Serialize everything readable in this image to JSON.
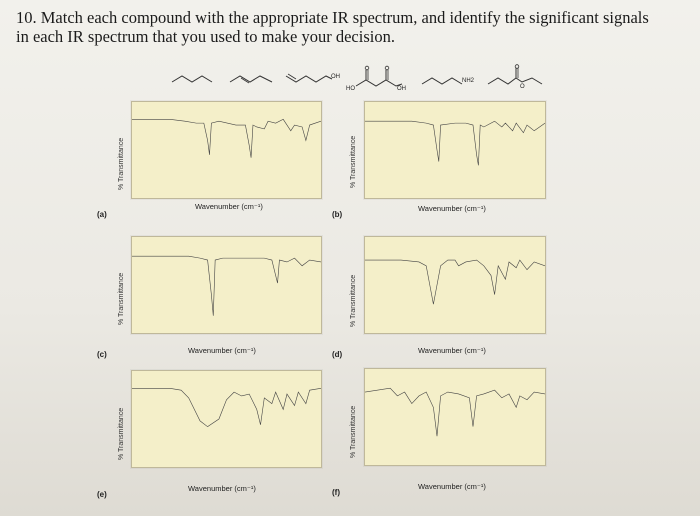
{
  "question": {
    "line1": "10. Match each compound with the appropriate IR spectrum, and identify the significant signals",
    "line2": "in each IR spectrum that you used to make your decision."
  },
  "compounds": [
    {
      "id": "alkene-1",
      "labels": []
    },
    {
      "id": "alkene-2",
      "labels": []
    },
    {
      "id": "alcohol",
      "labels": [
        "OH"
      ]
    },
    {
      "id": "keto-acid",
      "labels": [
        "HO",
        "OH"
      ]
    },
    {
      "id": "amine",
      "labels": [
        "NH2"
      ]
    },
    {
      "id": "ester",
      "labels": [
        "O"
      ]
    }
  ],
  "axis": {
    "y_label": "% Transmittance",
    "x_label": "Wavenumber (cm⁻¹)"
  },
  "panels": [
    {
      "label": "(a)"
    },
    {
      "label": "(b)"
    },
    {
      "label": "(c)"
    },
    {
      "label": "(d)"
    },
    {
      "label": "(e)"
    },
    {
      "label": "(f)"
    }
  ]
}
